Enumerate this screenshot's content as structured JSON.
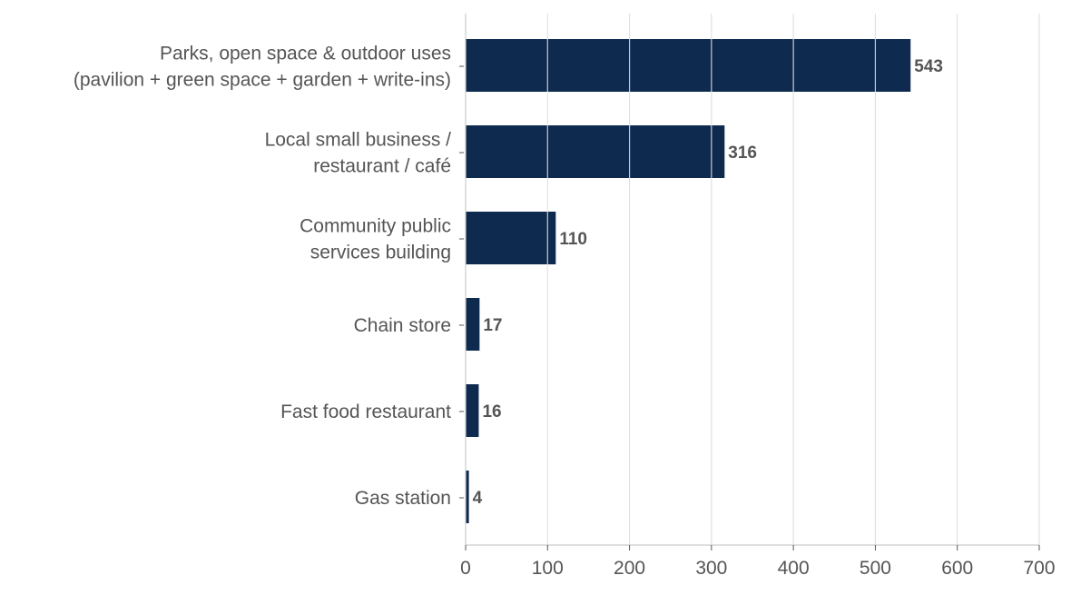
{
  "chart_data": {
    "type": "bar",
    "orientation": "horizontal",
    "categories": [
      [
        "Parks, open space & outdoor uses",
        "(pavilion + green space + garden + write-ins)"
      ],
      [
        "Local small business /",
        "restaurant / café"
      ],
      [
        "Community public",
        "services building"
      ],
      [
        "Chain store"
      ],
      [
        "Fast food restaurant"
      ],
      [
        "Gas station"
      ]
    ],
    "values": [
      543,
      316,
      110,
      17,
      16,
      4
    ],
    "value_labels": [
      "543",
      "316",
      "110",
      "17",
      "16",
      "4"
    ],
    "xlim": [
      0,
      700
    ],
    "xticks": [
      0,
      100,
      200,
      300,
      400,
      500,
      600,
      700
    ],
    "xtick_labels": [
      "0",
      "100",
      "200",
      "300",
      "400",
      "500",
      "600",
      "700"
    ],
    "grid": "vertical",
    "colors": {
      "bar": "#0e2a4f",
      "grid": "#dcdcdc",
      "text": "#555555"
    }
  }
}
